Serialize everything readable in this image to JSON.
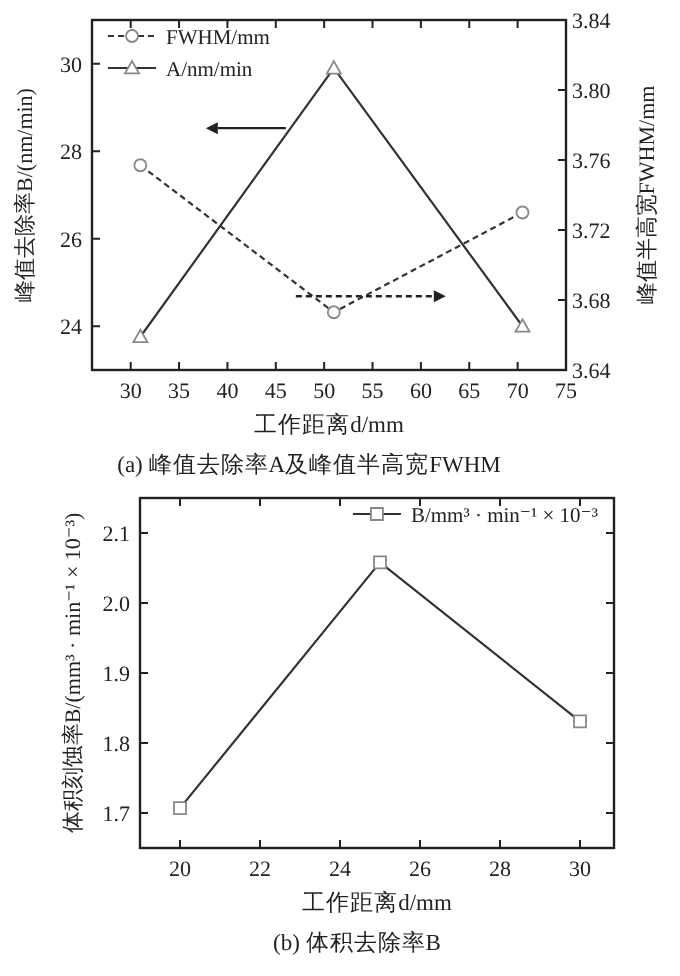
{
  "chart_data": [
    {
      "type": "line",
      "title": "(a) 峰值去除率A及峰值半高宽FWHM",
      "xlabel": "工作距离d/mm",
      "ylabel": "峰值去除率B/(nm/min)",
      "y2label": "峰值半高宽FWHM/mm",
      "x": [
        31,
        51,
        70.5
      ],
      "series": [
        {
          "name": "FWHM/mm",
          "color": "#333333",
          "axis": "y2",
          "line_style": "dashed",
          "marker": "circle",
          "values": [
            3.757,
            3.673,
            3.73
          ]
        },
        {
          "name": "A/nm/min",
          "color": "#333333",
          "line_style": "solid",
          "marker": "triangle",
          "values": [
            23.76,
            29.9,
            24.0
          ]
        }
      ],
      "xlim": [
        26,
        75
      ],
      "xticks": [
        30,
        35,
        40,
        45,
        50,
        55,
        60,
        65,
        70,
        75
      ],
      "ylim": [
        23,
        31
      ],
      "yticks": [
        24,
        26,
        28,
        30
      ],
      "y2lim": [
        3.64,
        3.84
      ],
      "y2ticks": [
        3.64,
        3.68,
        3.72,
        3.76,
        {
          "value": 3.8,
          "label": "3.80"
        },
        3.84
      ],
      "legend": "top left"
    },
    {
      "type": "line",
      "title": "(b) 体积去除率B",
      "xlabel": "工作距离d/mm",
      "ylabel": "体积刻蚀率B/(mm³ · min⁻¹ × 10⁻³)",
      "x": [
        20,
        25,
        30
      ],
      "series": [
        {
          "name": "B/mm³ · min⁻¹ × 10⁻³",
          "color": "#333333",
          "line_style": "solid",
          "marker": "square",
          "values": [
            1.707,
            2.058,
            1.831
          ]
        }
      ],
      "xlim": [
        19,
        30.85
      ],
      "xticks": [
        20,
        22,
        24,
        26,
        28,
        30
      ],
      "ylim": [
        1.65,
        2.15
      ],
      "yticks": [
        1.7,
        1.8,
        1.9,
        {
          "value": 2,
          "label": "2.0"
        },
        2.1
      ],
      "legend": "top right"
    }
  ]
}
